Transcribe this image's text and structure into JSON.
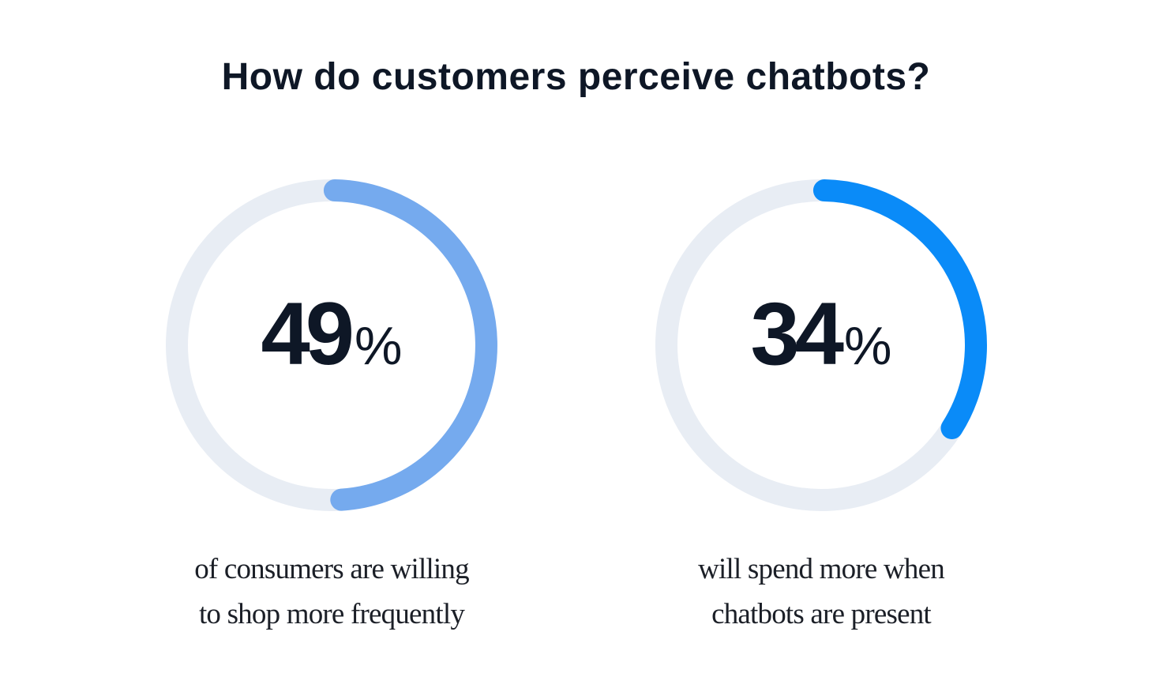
{
  "title": "How do customers perceive chatbots?",
  "chart_data": [
    {
      "type": "pie",
      "value": 49,
      "unit": "%",
      "caption_lines": [
        "of consumers are willing",
        "to shop more frequently"
      ],
      "color": "#75aaee",
      "track_color": "#e8edf4"
    },
    {
      "type": "pie",
      "value": 34,
      "unit": "%",
      "caption_lines": [
        "will spend more when",
        "chatbots are present"
      ],
      "color": "#0a8bf8",
      "track_color": "#e8edf4"
    }
  ]
}
